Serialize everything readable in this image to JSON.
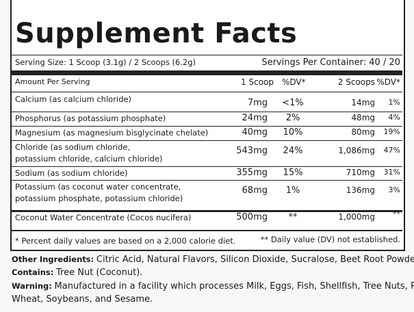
{
  "title": "Supplement Facts",
  "serving_size": "Serving Size: 1 Scoop (3.1g) / 2 Scoops (6.2g)",
  "servings_per_container": "Servings Per Container: 40 / 20",
  "header": [
    "Amount Per Serving",
    "1 Scoop",
    "%DV*",
    "2 Scoops",
    "%DV*"
  ],
  "rows": [
    {
      "name": [
        "Calcium (as calcium chloride)"
      ],
      "amount_1": "7mg",
      "dv_1": "<1%",
      "amount_2": "14mg",
      "dv_2": "1%"
    },
    {
      "name": [
        "Phosphorus (as potassium phosphate)"
      ],
      "amount_1": "24mg",
      "dv_1": "2%",
      "amount_2": "48mg",
      "dv_2": "4%"
    },
    {
      "name": [
        "Magnesium (as magnesium bisglycinate chelate)"
      ],
      "amount_1": "40mg",
      "dv_1": "10%",
      "amount_2": "80mg",
      "dv_2": "19%"
    },
    {
      "name": [
        "Chloride (as sodium chloride,",
        "potassium chloride, calcium chloride)"
      ],
      "amount_1": "543mg",
      "dv_1": "24%",
      "amount_2": "1,086mg",
      "dv_2": "47%"
    },
    {
      "name": [
        "Sodium (as sodium chloride)"
      ],
      "amount_1": "355mg",
      "dv_1": "15%",
      "amount_2": "710mg",
      "dv_2": "31%"
    },
    {
      "name": [
        "Potassium (as coconut water concentrate,",
        "potassium phosphate, potassium chloride)"
      ],
      "amount_1": "68mg",
      "dv_1": "1%",
      "amount_2": "136mg",
      "dv_2": "3%"
    },
    {
      "name": [
        "Coconut Water Concentrate (Cocos nucifera)"
      ],
      "amount_1": "500mg",
      "dv_1": "**",
      "amount_2": "1,000mg",
      "dv_2": "**"
    }
  ],
  "footnote_1": "* Percent daily values are based on a 2,000 calorie diet.",
  "footnote_2": "** Daily value (DV) not established.",
  "other_ingredients": {
    "label": "Other Ingredients:",
    "text": "Citric Acid, Natural Flavors, Silicon Dioxide, Sucralose, Beet Root Powder (for color)"
  },
  "contains": {
    "label": "Contains:",
    "text": "Tree Nut (Coconut)."
  },
  "warning": {
    "label": "Warning:",
    "lines": [
      "Manufactured in a facility which processes Milk, Eggs, Fish, Shellfish, Tree Nuts, Peanuts,",
      "Wheat, Soybeans, and Sesame."
    ]
  }
}
